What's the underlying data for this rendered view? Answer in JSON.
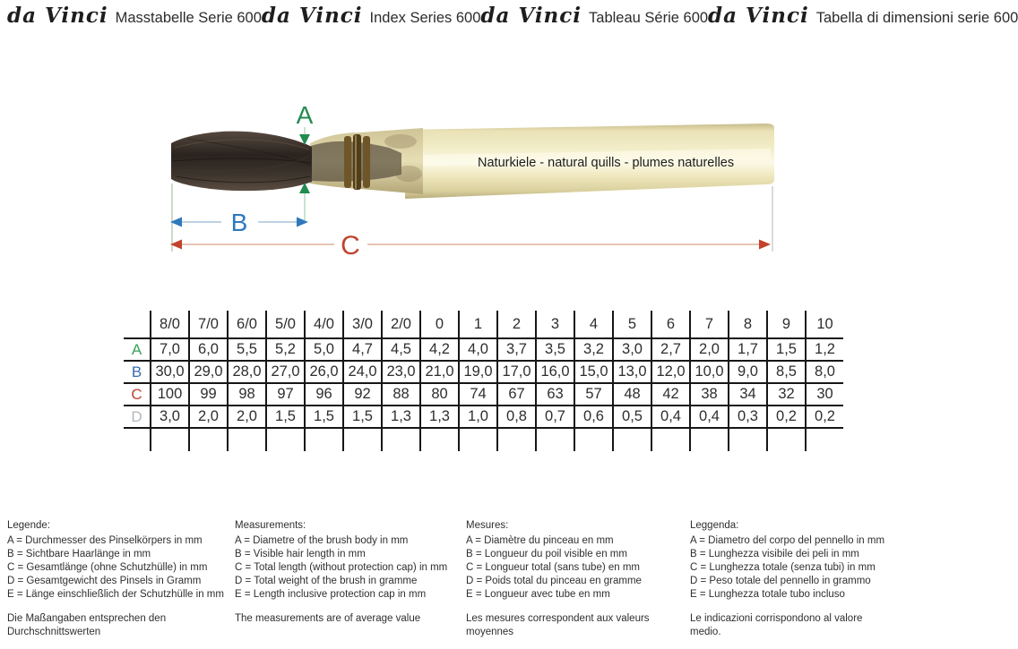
{
  "header": {
    "brand": "da Vinci",
    "sections": [
      {
        "title": "Masstabelle Serie 600"
      },
      {
        "title": "Index Series 600"
      },
      {
        "title": "Tableau Série 600"
      },
      {
        "title": "Tabella di dimensioni serie 600"
      }
    ]
  },
  "figure": {
    "handle_text": "Naturkiele - natural quills - plumes naturelles",
    "dims": {
      "a": "A",
      "b": "B",
      "c": "C"
    },
    "colors": {
      "dim_a": "#228b50",
      "dim_b": "#2e79bc",
      "dim_c": "#c2422c"
    }
  },
  "size_table": {
    "columns": [
      "8/0",
      "7/0",
      "6/0",
      "5/0",
      "4/0",
      "3/0",
      "2/0",
      "0",
      "1",
      "2",
      "3",
      "4",
      "5",
      "6",
      "7",
      "8",
      "9",
      "10"
    ],
    "rows": [
      {
        "label": "A",
        "color": "#3aa05a",
        "values": [
          "7,0",
          "6,0",
          "5,5",
          "5,2",
          "5,0",
          "4,7",
          "4,5",
          "4,2",
          "4,0",
          "3,7",
          "3,5",
          "3,2",
          "3,0",
          "2,7",
          "2,0",
          "1,7",
          "1,5",
          "1,2"
        ]
      },
      {
        "label": "B",
        "color": "#3a6cb0",
        "values": [
          "30,0",
          "29,0",
          "28,0",
          "27,0",
          "26,0",
          "24,0",
          "23,0",
          "21,0",
          "19,0",
          "17,0",
          "16,0",
          "15,0",
          "13,0",
          "12,0",
          "10,0",
          "9,0",
          "8,5",
          "8,0"
        ]
      },
      {
        "label": "C",
        "color": "#c04030",
        "values": [
          "100",
          "99",
          "98",
          "97",
          "96",
          "92",
          "88",
          "80",
          "74",
          "67",
          "63",
          "57",
          "48",
          "42",
          "38",
          "34",
          "32",
          "30"
        ]
      },
      {
        "label": "D",
        "color": "#b4b8bc",
        "values": [
          "3,0",
          "2,0",
          "2,0",
          "1,5",
          "1,5",
          "1,5",
          "1,3",
          "1,3",
          "1,0",
          "0,8",
          "0,7",
          "0,6",
          "0,5",
          "0,4",
          "0,4",
          "0,3",
          "0,2",
          "0,2"
        ]
      },
      {
        "label": "",
        "color": "",
        "empty": true,
        "values": [
          "",
          "",
          "",
          "",
          "",
          "",
          "",
          "",
          "",
          "",
          "",
          "",
          "",
          "",
          "",
          "",
          "",
          ""
        ]
      }
    ]
  },
  "legends": [
    {
      "title": "Legende:",
      "lines": [
        "A = Durchmesser des Pinselkörpers in mm",
        "B = Sichtbare Haarlänge in mm",
        "C = Gesamtlänge (ohne Schutzhülle) in mm",
        "D = Gesamtgewicht des Pinsels in Gramm",
        "E = Länge einschließlich der Schutzhülle in mm"
      ],
      "note": "Die Maßangaben entsprechen den Durchschnittswerten"
    },
    {
      "title": "Measurements:",
      "lines": [
        "A = Diametre of the brush body in mm",
        "B = Visible hair length in mm",
        "C = Total length (without protection cap) in mm",
        "D = Total weight of the brush in gramme",
        "E = Length inclusive protection cap in mm"
      ],
      "note": "The measurements are of average value"
    },
    {
      "title": "Mesures:",
      "lines": [
        "A = Diamètre du pinceau en mm",
        "B = Longueur du poil visible en mm",
        "C = Longueur total (sans tube) en mm",
        "D = Poids total du pinceau en gramme",
        "E = Longueur avec tube en mm"
      ],
      "note": "Les mesures correspondent aux valeurs moyennes"
    },
    {
      "title": "Leggenda:",
      "lines": [
        "A = Diametro del corpo del pennello in mm",
        "B = Lunghezza visibile dei peli in mm",
        "C = Lunghezza totale (senza tubi) in mm",
        "D = Peso totale del pennello in grammo",
        "E = Lunghezza totale tubo incluso"
      ],
      "note": "Le indicazioni corrispondono al valore medio."
    }
  ]
}
